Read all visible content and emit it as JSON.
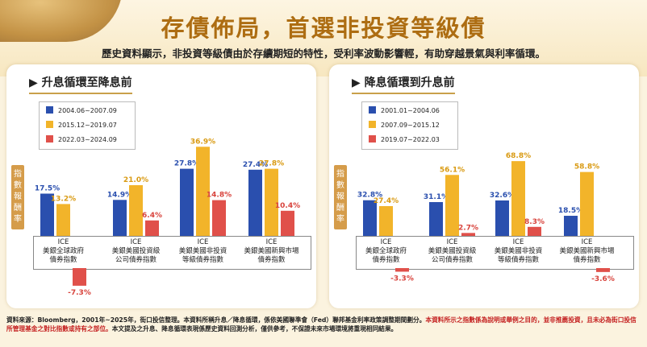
{
  "header": {
    "title": "存債佈局，首選非投資等級債",
    "subtitle": "歷史資料顯示，非投資等級債由於存續期短的特性，受利率波動影響輕，有助穿越景氣與利率循環。"
  },
  "colors": {
    "blue": "#2a4fae",
    "yellow": "#f2b42a",
    "red": "#e0504a",
    "accent": "#ad6d12"
  },
  "ylabel": "指數報酬率",
  "chart_data": [
    {
      "type": "bar",
      "title": "升息循環至降息前",
      "ylabel": "指數報酬率",
      "categories": [
        "ICE\n美銀全球政府\n債券指數",
        "ICE\n美銀美國投資級\n公司債券指數",
        "ICE\n美銀美國非投資\n等級債券指數",
        "ICE\n美銀美國新興市場\n債券指數"
      ],
      "series": [
        {
          "name": "2004.06~2007.09",
          "values": [
            17.5,
            14.9,
            27.8,
            27.4
          ],
          "labels": [
            "17.5%",
            "14.9%",
            "27.8%",
            "27.4%"
          ]
        },
        {
          "name": "2015.12~2019.07",
          "values": [
            13.2,
            21.0,
            36.9,
            27.8
          ],
          "labels": [
            "13.2%",
            "21.0%",
            "36.9%",
            "27.8%"
          ]
        },
        {
          "name": "2022.03~2024.09",
          "values": [
            -7.3,
            6.4,
            14.8,
            10.4
          ],
          "labels": [
            "-7.3%",
            "6.4%",
            "14.8%",
            "10.4%"
          ]
        }
      ]
    },
    {
      "type": "bar",
      "title": "降息循環到升息前",
      "ylabel": "指數報酬率",
      "categories": [
        "ICE\n美銀全球政府\n債券指數",
        "ICE\n美銀美國投資級\n公司債券指數",
        "ICE\n美銀美國非投資\n等級債券指數",
        "ICE\n美銀美國新興市場\n債券指數"
      ],
      "series": [
        {
          "name": "2001.01~2004.06",
          "values": [
            32.8,
            31.1,
            32.6,
            18.5
          ],
          "labels": [
            "32.8%",
            "31.1%",
            "32.6%",
            "18.5%"
          ]
        },
        {
          "name": "2007.09~2015.12",
          "values": [
            27.4,
            56.1,
            68.8,
            58.8
          ],
          "labels": [
            "27.4%",
            "56.1%",
            "68.8%",
            "58.8%"
          ]
        },
        {
          "name": "2019.07~2022.03",
          "values": [
            -3.3,
            2.7,
            8.3,
            -3.6
          ],
          "labels": [
            "-3.3%",
            "2.7%",
            "8.3%",
            "-3.6%"
          ]
        }
      ]
    }
  ],
  "footer": {
    "part1": "資料來源：Bloomberg，2001年~2025年，街口投信整理。本資料所稱升息／降息循環，係依美國聯準會（Fed）聯邦基金利率政策調整期間劃分。",
    "part2": "本資料所示之指數係為說明或舉例之目的，並非推薦投資，且未必為街口投信所管理基金之對比指數或持有之部位。",
    "part3": "本文提及之升息、降息循環表現係歷史資料回測分析，僅供參考，不保證未來市場環境將重現相同結果。"
  }
}
